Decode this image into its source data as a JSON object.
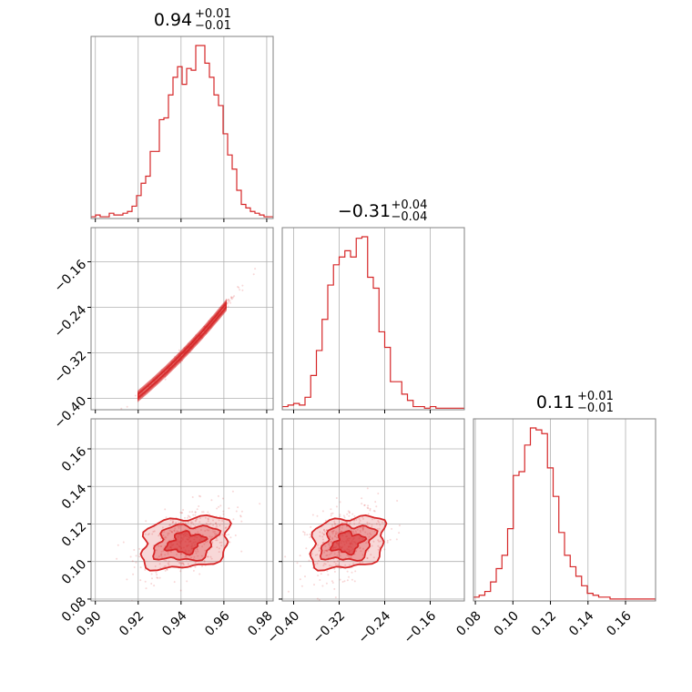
{
  "colors": {
    "accent": "#d62728",
    "grid": "#b0b0b0",
    "frame": "#808080"
  },
  "titles": [
    {
      "main": "0.94",
      "sup": "+0.01",
      "sub": "−0.01"
    },
    {
      "main": "−0.31",
      "sup": "+0.04",
      "sub": "−0.04"
    },
    {
      "main": "0.11",
      "sup": "+0.01",
      "sub": "−0.01"
    }
  ],
  "chart_data": {
    "type": "corner",
    "parameters": [
      {
        "median": 0.94,
        "plus": 0.01,
        "minus": 0.01,
        "range": [
          0.898,
          0.983
        ],
        "ticks": [
          0.9,
          0.92,
          0.94,
          0.96,
          0.98
        ],
        "tick_labels": [
          "0.90",
          "0.92",
          "0.94",
          "0.96",
          "0.98"
        ]
      },
      {
        "median": -0.31,
        "plus": 0.04,
        "minus": 0.04,
        "range": [
          -0.42,
          -0.1
        ],
        "ticks": [
          -0.4,
          -0.32,
          -0.24,
          -0.16
        ],
        "tick_labels": [
          "−0.40",
          "−0.32",
          "−0.24",
          "−0.16"
        ]
      },
      {
        "median": 0.11,
        "plus": 0.01,
        "minus": 0.01,
        "range": [
          0.079,
          0.176
        ],
        "ticks": [
          0.08,
          0.1,
          0.12,
          0.14,
          0.16
        ],
        "tick_labels": [
          "0.08",
          "0.10",
          "0.12",
          "0.14",
          "0.16"
        ]
      }
    ],
    "histograms": [
      [
        1,
        2,
        1,
        1,
        3,
        2,
        2,
        3,
        4,
        7,
        13,
        20,
        24,
        38,
        38,
        56,
        57,
        70,
        80,
        86,
        76,
        85,
        84,
        98,
        98,
        88,
        80,
        70,
        64,
        48,
        36,
        28,
        16,
        8,
        6,
        4,
        3,
        2,
        1,
        1
      ],
      [
        2,
        3,
        4,
        3,
        8,
        22,
        38,
        58,
        80,
        93,
        98,
        102,
        98,
        110,
        111,
        85,
        78,
        50,
        40,
        18,
        18,
        10,
        6,
        2,
        2,
        1,
        2,
        1,
        1,
        1,
        1,
        1
      ],
      [
        2,
        3,
        5,
        10,
        17,
        24,
        38,
        66,
        68,
        82,
        91,
        90,
        88,
        70,
        55,
        36,
        24,
        18,
        13,
        8,
        4,
        3,
        2,
        2,
        1,
        1,
        1,
        1,
        1,
        1,
        1,
        1
      ]
    ],
    "grid": true
  }
}
